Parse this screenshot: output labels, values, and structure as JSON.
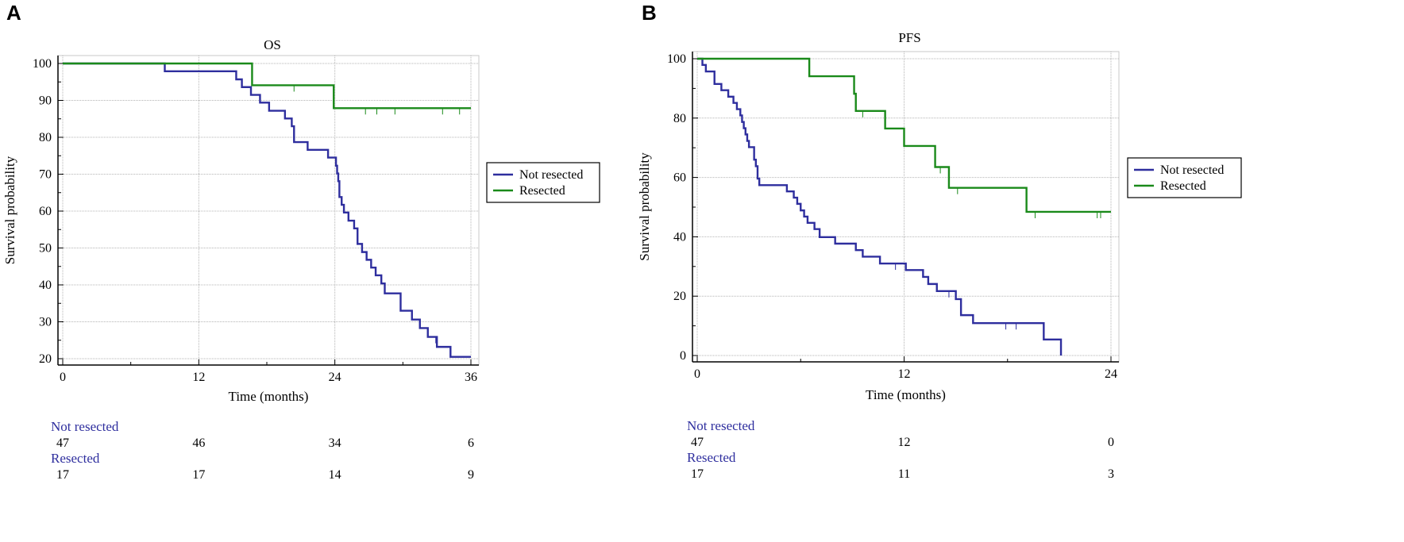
{
  "chart_data": [
    {
      "panel": "A",
      "type": "line",
      "subtype": "kaplan-meier",
      "title": "OS",
      "xlabel": "Time (months)",
      "ylabel": "Survival probability",
      "xlim": [
        0,
        36
      ],
      "ylim": [
        20,
        100
      ],
      "xticks": [
        0,
        12,
        24,
        36
      ],
      "yticks": [
        20,
        30,
        40,
        50,
        60,
        70,
        80,
        90,
        100
      ],
      "grid": true,
      "legend": {
        "placement": "right",
        "entries": [
          "Not resected",
          "Resected"
        ]
      },
      "series": [
        {
          "name": "Not resected",
          "color": "#2e2e9e",
          "steps": [
            [
              0,
              100
            ],
            [
              9,
              97.9
            ],
            [
              15.3,
              95.7
            ],
            [
              15.8,
              93.6
            ],
            [
              16.6,
              91.5
            ],
            [
              17.4,
              89.4
            ],
            [
              18.2,
              87.2
            ],
            [
              19.6,
              85.1
            ],
            [
              20.2,
              83
            ],
            [
              20.4,
              78.7
            ],
            [
              21.6,
              76.6
            ],
            [
              23.4,
              74.5
            ],
            [
              24.1,
              72.3
            ],
            [
              24.2,
              70.2
            ],
            [
              24.3,
              68.1
            ],
            [
              24.4,
              63.8
            ],
            [
              24.6,
              61.7
            ],
            [
              24.8,
              59.6
            ],
            [
              25.2,
              57.4
            ],
            [
              25.7,
              55.3
            ],
            [
              26,
              51.1
            ],
            [
              26.4,
              48.9
            ],
            [
              26.8,
              46.8
            ],
            [
              27.2,
              44.7
            ],
            [
              27.6,
              42.6
            ],
            [
              28.1,
              40.4
            ],
            [
              28.4,
              37.7
            ],
            [
              29.8,
              33
            ],
            [
              30.8,
              30.6
            ],
            [
              31.5,
              28.3
            ],
            [
              32.2,
              25.9
            ],
            [
              33,
              23.2
            ],
            [
              34.2,
              20.5
            ],
            [
              36,
              20.5
            ]
          ],
          "censor_times": [
            32.9
          ]
        },
        {
          "name": "Resected",
          "color": "#1a8a1a",
          "steps": [
            [
              0,
              100
            ],
            [
              16.7,
              94.1
            ],
            [
              23.9,
              87.9
            ],
            [
              36,
              87.9
            ]
          ],
          "censor_times": [
            20.4,
            26.7,
            27.7,
            29.3,
            33.5,
            35.0
          ]
        }
      ],
      "at_risk": {
        "times": [
          0,
          12,
          24,
          36
        ],
        "groups": [
          {
            "label": "Not resected",
            "values": [
              "47",
              "46",
              "34",
              "6"
            ]
          },
          {
            "label": "Resected",
            "values": [
              "17",
              "17",
              "14",
              "9"
            ]
          }
        ]
      }
    },
    {
      "panel": "B",
      "type": "line",
      "subtype": "kaplan-meier",
      "title": "PFS",
      "xlabel": "Time (months)",
      "ylabel": "Survival probability",
      "xlim": [
        0,
        24
      ],
      "ylim": [
        0,
        100
      ],
      "xticks": [
        0,
        12,
        24
      ],
      "yticks": [
        0,
        20,
        40,
        60,
        80,
        100
      ],
      "grid": true,
      "legend": {
        "placement": "right",
        "entries": [
          "Not resected",
          "Resected"
        ]
      },
      "series": [
        {
          "name": "Not resected",
          "color": "#2e2e9e",
          "steps": [
            [
              0,
              100
            ],
            [
              0.3,
              97.9
            ],
            [
              0.5,
              95.7
            ],
            [
              1,
              91.5
            ],
            [
              1.4,
              89.4
            ],
            [
              1.8,
              87.2
            ],
            [
              2.1,
              85.1
            ],
            [
              2.3,
              83
            ],
            [
              2.5,
              80.9
            ],
            [
              2.6,
              78.7
            ],
            [
              2.7,
              76.6
            ],
            [
              2.8,
              74.5
            ],
            [
              2.9,
              72.3
            ],
            [
              3.0,
              70.2
            ],
            [
              3.3,
              66
            ],
            [
              3.4,
              63.8
            ],
            [
              3.5,
              59.6
            ],
            [
              3.6,
              57.4
            ],
            [
              5.2,
              55.3
            ],
            [
              5.6,
              53.2
            ],
            [
              5.8,
              51.1
            ],
            [
              6.0,
              48.9
            ],
            [
              6.2,
              46.8
            ],
            [
              6.4,
              44.7
            ],
            [
              6.8,
              42.6
            ],
            [
              7.1,
              39.9
            ],
            [
              8,
              37.7
            ],
            [
              9.2,
              35.5
            ],
            [
              9.6,
              33.3
            ],
            [
              10.6,
              31
            ],
            [
              12.1,
              28.8
            ],
            [
              13.1,
              26.5
            ],
            [
              13.4,
              24.1
            ],
            [
              13.9,
              21.7
            ],
            [
              15,
              19
            ],
            [
              15.3,
              13.6
            ],
            [
              16,
              10.9
            ],
            [
              20.1,
              5.4
            ],
            [
              21.1,
              0
            ]
          ],
          "censor_times": [
            11.5,
            14.6,
            17.9,
            18.5
          ]
        },
        {
          "name": "Resected",
          "color": "#1a8a1a",
          "steps": [
            [
              0,
              100
            ],
            [
              6.5,
              94.1
            ],
            [
              9.1,
              88.2
            ],
            [
              9.2,
              82.4
            ],
            [
              10.9,
              76.5
            ],
            [
              12,
              70.6
            ],
            [
              13.8,
              63.5
            ],
            [
              14.6,
              56.5
            ],
            [
              19.1,
              48.4
            ],
            [
              24,
              48.4
            ]
          ],
          "censor_times": [
            9.6,
            14.1,
            15.1,
            19.6,
            23.2,
            23.4
          ]
        }
      ],
      "at_risk": {
        "times": [
          0,
          12,
          24
        ],
        "groups": [
          {
            "label": "Not resected",
            "values": [
              "47",
              "12",
              "0"
            ]
          },
          {
            "label": "Resected",
            "values": [
              "17",
              "11",
              "3"
            ]
          }
        ]
      }
    }
  ]
}
